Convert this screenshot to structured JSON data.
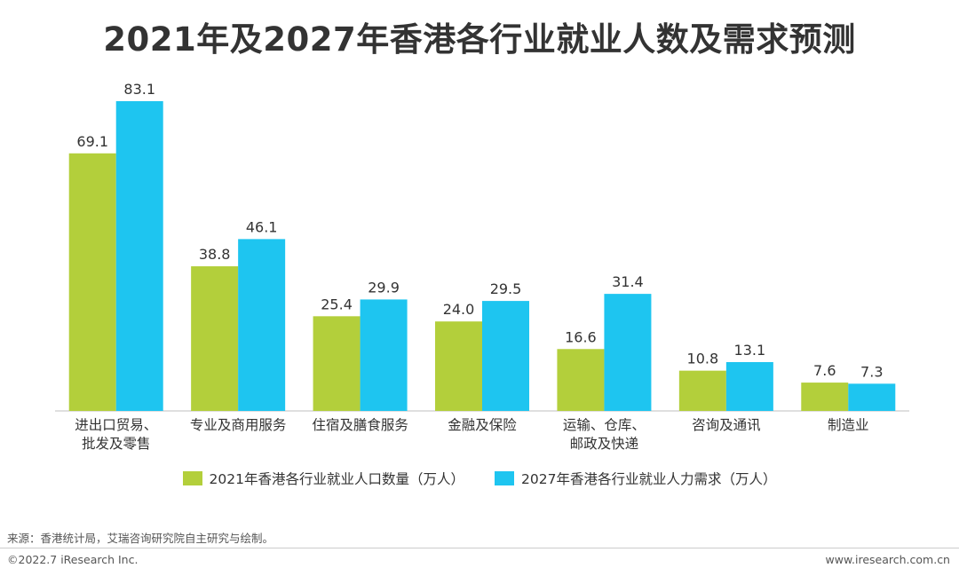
{
  "title": "2021年及2027年香港各行业就业人数及需求预测",
  "colors": {
    "series2021": "#b3cf3b",
    "series2027": "#1ec5f0",
    "axis": "#bfbfbf",
    "text": "#333333"
  },
  "chart_data": {
    "type": "bar",
    "title": "2021年及2027年香港各行业就业人数及需求预测",
    "categories": [
      [
        "进出口贸易、",
        "批发及零售"
      ],
      [
        "专业及商用服务"
      ],
      [
        "住宿及膳食服务"
      ],
      [
        "金融及保险"
      ],
      [
        "运输、仓库、",
        "邮政及快递"
      ],
      [
        "咨询及通讯"
      ],
      [
        "制造业"
      ]
    ],
    "series": [
      {
        "name": "2021年香港各行业就业人口数量（万人）",
        "values": [
          69.1,
          38.8,
          25.4,
          24.0,
          16.6,
          10.8,
          7.6
        ],
        "labels": [
          "69.1",
          "38.8",
          "25.4",
          "24.0",
          "16.6",
          "10.8",
          "7.6"
        ]
      },
      {
        "name": "2027年香港各行业就业人力需求（万人）",
        "values": [
          83.1,
          46.1,
          29.9,
          29.5,
          31.4,
          13.1,
          7.3
        ],
        "labels": [
          "83.1",
          "46.1",
          "29.9",
          "29.5",
          "31.4",
          "13.1",
          "7.3"
        ]
      }
    ],
    "ylim": [
      0,
      90
    ],
    "xlabel": "",
    "ylabel": "",
    "grid": false,
    "legend": "bottom-center"
  },
  "footer": {
    "source": "来源：香港统计局，艾瑞咨询研究院自主研究与绘制。",
    "copyright": "©2022.7 iResearch Inc.",
    "website": "www.iresearch.com.cn"
  }
}
